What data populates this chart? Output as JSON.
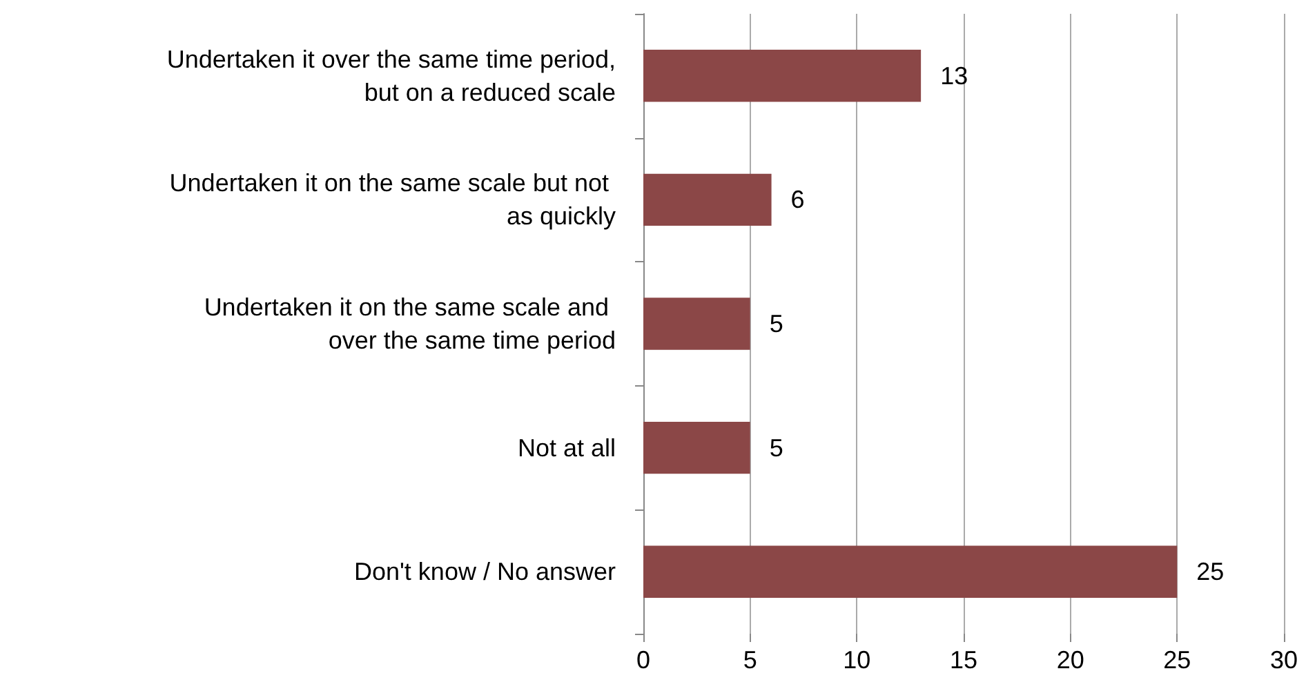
{
  "chart_data": {
    "type": "bar",
    "orientation": "horizontal",
    "categories": [
      "Undertaken it over the same time period, but on a reduced scale",
      "Undertaken it on the same scale but not as quickly",
      "Undertaken it on the same scale and over the same time period",
      "Not at all",
      "Don't know / No answer"
    ],
    "values": [
      13,
      6,
      5,
      5,
      25
    ],
    "color": "#8b4747",
    "xlim": [
      0,
      30
    ],
    "xticks": [
      0,
      5,
      10,
      15,
      20,
      25,
      30
    ],
    "grid": "x",
    "data_labels": true
  }
}
